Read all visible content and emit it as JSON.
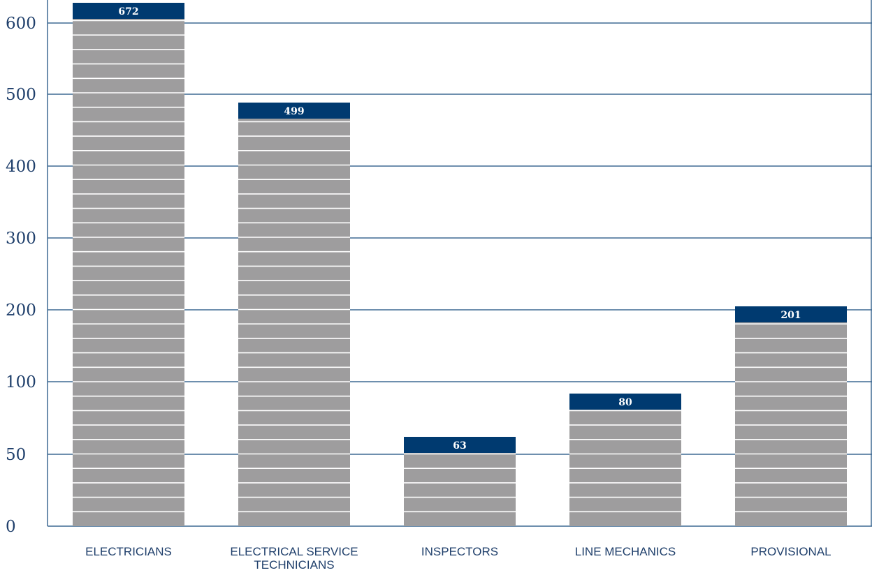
{
  "chart_data": {
    "type": "bar",
    "categories": [
      [
        "ELECTRICIANS"
      ],
      [
        "ELECTRICAL SERVICE",
        "TECHNICIANS"
      ],
      [
        "INSPECTORS"
      ],
      [
        "LINE MECHANICS"
      ],
      [
        "PROVISIONAL"
      ]
    ],
    "values": [
      672,
      499,
      63,
      80,
      201
    ],
    "y_ticks": [
      {
        "label": "0",
        "at": 0
      },
      {
        "label": "50",
        "at": 50
      },
      {
        "label": "100",
        "at": 100
      },
      {
        "label": "200",
        "at": 200
      },
      {
        "label": "300",
        "at": 300
      },
      {
        "label": "400",
        "at": 400
      },
      {
        "label": "500",
        "at": 500
      },
      {
        "label": "600",
        "at": 600
      }
    ],
    "axis_note": "tick labels are printed as shown; the visual spacing between 0, 50 and 100 matches the spacing between 100-unit steps",
    "grid": true,
    "colors": {
      "bar": "#9e9d9e",
      "bar_cap": "#003a70",
      "gridline": "#3f6a93",
      "text": "#1f3f6b",
      "stripe": "#ffffff"
    }
  }
}
